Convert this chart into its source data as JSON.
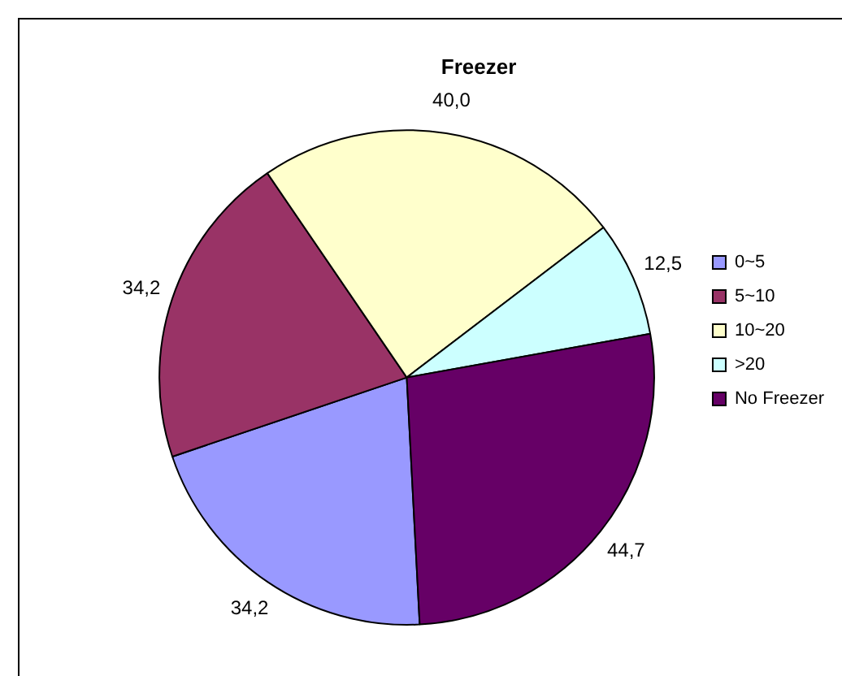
{
  "chart_data": {
    "type": "pie",
    "title": "Freezer",
    "categories": [
      "0~5",
      "5~10",
      "10~20",
      ">20",
      "No Freezer"
    ],
    "values": [
      34.2,
      34.2,
      40.0,
      12.5,
      44.7
    ],
    "value_labels": [
      "34,2",
      "34,2",
      "40,0",
      "12,5",
      "44,7"
    ],
    "colors": [
      "#9999ff",
      "#993366",
      "#ffffcc",
      "#ccffff",
      "#660066"
    ],
    "legend": "right"
  }
}
